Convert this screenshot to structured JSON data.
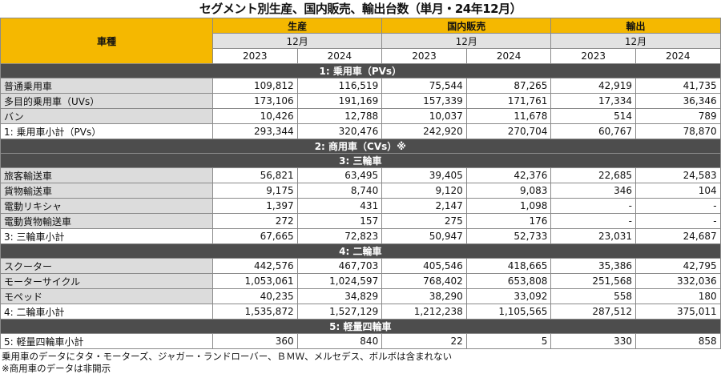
{
  "title": "セグメント別生産、国内販売、輸出台数（単月・24年12月）",
  "header": {
    "vehicle_type": "車種",
    "groups": [
      "生産",
      "国内販売",
      "輸出"
    ],
    "month": "12月",
    "years": [
      "2023",
      "2024"
    ]
  },
  "sections": [
    {
      "type": "section",
      "label": "1: 乗用車（PVs）"
    },
    {
      "type": "row",
      "label": "普通乗用車",
      "values": [
        "109,812",
        "116,519",
        "75,544",
        "87,265",
        "42,919",
        "41,735"
      ]
    },
    {
      "type": "row",
      "label": "多目的乗用車（UVs）",
      "values": [
        "173,106",
        "191,169",
        "157,339",
        "171,761",
        "17,334",
        "36,346"
      ]
    },
    {
      "type": "row",
      "label": "バン",
      "values": [
        "10,426",
        "12,788",
        "10,037",
        "11,678",
        "514",
        "789"
      ]
    },
    {
      "type": "subtotal",
      "label": "1: 乗用車小計（PVs）",
      "values": [
        "293,344",
        "320,476",
        "242,920",
        "270,704",
        "60,767",
        "78,870"
      ]
    },
    {
      "type": "section",
      "label": "2: 商用車（CVs）※"
    },
    {
      "type": "section",
      "label": "3: 三輪車"
    },
    {
      "type": "row",
      "label": "旅客輸送車",
      "values": [
        "56,821",
        "63,495",
        "39,405",
        "42,376",
        "22,685",
        "24,583"
      ]
    },
    {
      "type": "row",
      "label": "貨物輸送車",
      "values": [
        "9,175",
        "8,740",
        "9,120",
        "9,083",
        "346",
        "104"
      ]
    },
    {
      "type": "row",
      "label": "電動リキシャ",
      "values": [
        "1,397",
        "431",
        "2,147",
        "1,098",
        "-",
        "-"
      ]
    },
    {
      "type": "row",
      "label": "電動貨物輸送車",
      "values": [
        "272",
        "157",
        "275",
        "176",
        "-",
        "-"
      ]
    },
    {
      "type": "subtotal",
      "label": "3: 三輪車小計",
      "values": [
        "67,665",
        "72,823",
        "50,947",
        "52,733",
        "23,031",
        "24,687"
      ]
    },
    {
      "type": "section",
      "label": "4: 二輪車"
    },
    {
      "type": "row",
      "label": "スクーター",
      "values": [
        "442,576",
        "467,703",
        "405,546",
        "418,665",
        "35,386",
        "42,795"
      ]
    },
    {
      "type": "row",
      "label": "モーターサイクル",
      "values": [
        "1,053,061",
        "1,024,597",
        "768,402",
        "653,808",
        "251,568",
        "332,036"
      ]
    },
    {
      "type": "row",
      "label": "モペッド",
      "values": [
        "40,235",
        "34,829",
        "38,290",
        "33,092",
        "558",
        "180"
      ]
    },
    {
      "type": "subtotal",
      "label": "4: 二輪車小計",
      "values": [
        "1,535,872",
        "1,527,129",
        "1,212,238",
        "1,105,565",
        "287,512",
        "375,011"
      ]
    },
    {
      "type": "section",
      "label": "5: 軽量四輪車"
    },
    {
      "type": "subtotal",
      "label": "5: 軽量四輪車小計",
      "values": [
        "360",
        "840",
        "22",
        "5",
        "330",
        "858"
      ]
    }
  ],
  "notes": [
    "乗用車のデータにタタ・モーターズ、ジャガー・ランドローバー、ＢＭＷ、メルセデス、ボルボは含まれない",
    "※商用車のデータは非開示"
  ]
}
